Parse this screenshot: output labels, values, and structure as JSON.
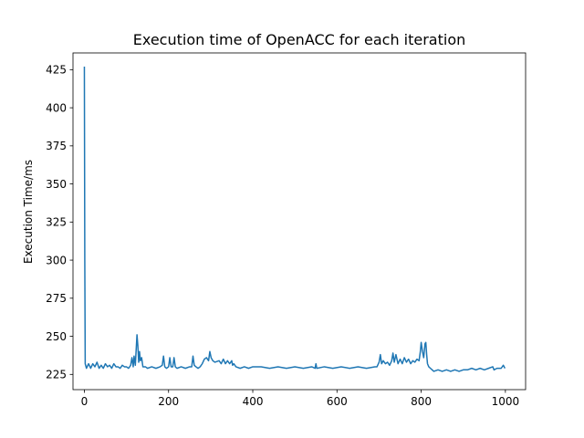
{
  "chart_data": {
    "type": "line",
    "title": "Execution time of OpenACC for each iteration",
    "xlabel": "",
    "ylabel": "Execution Time/ms",
    "xlim": [
      -27,
      1048
    ],
    "ylim": [
      215,
      436
    ],
    "xticks": [
      0,
      200,
      400,
      600,
      800,
      1000
    ],
    "yticks": [
      225,
      250,
      275,
      300,
      325,
      350,
      375,
      400,
      425
    ],
    "grid": false,
    "legend": "none",
    "series": [
      {
        "color": "#1f77b4",
        "points": [
          [
            0,
            427
          ],
          [
            1,
            300
          ],
          [
            2,
            232
          ],
          [
            5,
            229
          ],
          [
            10,
            232
          ],
          [
            15,
            229
          ],
          [
            20,
            232
          ],
          [
            25,
            230
          ],
          [
            30,
            233
          ],
          [
            35,
            229
          ],
          [
            40,
            231
          ],
          [
            45,
            229
          ],
          [
            50,
            232
          ],
          [
            55,
            230
          ],
          [
            60,
            231
          ],
          [
            65,
            229
          ],
          [
            70,
            232
          ],
          [
            75,
            230
          ],
          [
            80,
            230
          ],
          [
            85,
            229
          ],
          [
            90,
            231
          ],
          [
            95,
            230
          ],
          [
            100,
            230
          ],
          [
            105,
            229
          ],
          [
            110,
            231
          ],
          [
            113,
            236
          ],
          [
            116,
            230
          ],
          [
            118,
            237
          ],
          [
            121,
            231
          ],
          [
            123,
            241
          ],
          [
            125,
            251
          ],
          [
            127,
            244
          ],
          [
            129,
            233
          ],
          [
            131,
            240
          ],
          [
            133,
            234
          ],
          [
            136,
            236
          ],
          [
            139,
            230
          ],
          [
            145,
            230
          ],
          [
            150,
            229
          ],
          [
            160,
            230
          ],
          [
            170,
            229
          ],
          [
            180,
            230
          ],
          [
            185,
            231
          ],
          [
            188,
            237
          ],
          [
            191,
            230
          ],
          [
            195,
            229
          ],
          [
            200,
            230
          ],
          [
            203,
            236
          ],
          [
            206,
            230
          ],
          [
            210,
            230
          ],
          [
            213,
            236
          ],
          [
            216,
            230
          ],
          [
            220,
            229
          ],
          [
            230,
            230
          ],
          [
            240,
            229
          ],
          [
            250,
            230
          ],
          [
            255,
            230
          ],
          [
            258,
            237
          ],
          [
            261,
            231
          ],
          [
            265,
            230
          ],
          [
            270,
            229
          ],
          [
            275,
            230
          ],
          [
            280,
            232
          ],
          [
            285,
            235
          ],
          [
            290,
            236
          ],
          [
            295,
            234
          ],
          [
            298,
            240
          ],
          [
            301,
            236
          ],
          [
            305,
            234
          ],
          [
            310,
            233
          ],
          [
            320,
            234
          ],
          [
            325,
            232
          ],
          [
            330,
            235
          ],
          [
            335,
            232
          ],
          [
            340,
            234
          ],
          [
            345,
            232
          ],
          [
            350,
            234
          ],
          [
            352,
            231
          ],
          [
            355,
            232
          ],
          [
            360,
            230
          ],
          [
            370,
            229
          ],
          [
            380,
            230
          ],
          [
            390,
            229
          ],
          [
            400,
            230
          ],
          [
            420,
            230
          ],
          [
            440,
            229
          ],
          [
            460,
            230
          ],
          [
            480,
            229
          ],
          [
            500,
            230
          ],
          [
            520,
            229
          ],
          [
            540,
            230
          ],
          [
            548,
            229
          ],
          [
            550,
            232
          ],
          [
            552,
            229
          ],
          [
            570,
            230
          ],
          [
            590,
            229
          ],
          [
            610,
            230
          ],
          [
            630,
            229
          ],
          [
            650,
            230
          ],
          [
            670,
            229
          ],
          [
            690,
            230
          ],
          [
            695,
            230
          ],
          [
            700,
            233
          ],
          [
            703,
            238
          ],
          [
            706,
            232
          ],
          [
            710,
            234
          ],
          [
            715,
            232
          ],
          [
            720,
            233
          ],
          [
            725,
            231
          ],
          [
            730,
            234
          ],
          [
            733,
            239
          ],
          [
            736,
            233
          ],
          [
            740,
            238
          ],
          [
            745,
            232
          ],
          [
            750,
            235
          ],
          [
            755,
            232
          ],
          [
            760,
            236
          ],
          [
            765,
            233
          ],
          [
            770,
            235
          ],
          [
            775,
            232
          ],
          [
            780,
            234
          ],
          [
            785,
            233
          ],
          [
            790,
            235
          ],
          [
            795,
            234
          ],
          [
            798,
            240
          ],
          [
            800,
            246
          ],
          [
            803,
            240
          ],
          [
            806,
            236
          ],
          [
            809,
            245
          ],
          [
            811,
            246
          ],
          [
            813,
            238
          ],
          [
            815,
            232
          ],
          [
            818,
            230
          ],
          [
            822,
            229
          ],
          [
            826,
            228
          ],
          [
            830,
            227
          ],
          [
            840,
            228
          ],
          [
            850,
            227
          ],
          [
            860,
            228
          ],
          [
            870,
            227
          ],
          [
            880,
            228
          ],
          [
            890,
            227
          ],
          [
            900,
            228
          ],
          [
            910,
            228
          ],
          [
            920,
            229
          ],
          [
            930,
            228
          ],
          [
            940,
            229
          ],
          [
            950,
            228
          ],
          [
            960,
            229
          ],
          [
            970,
            230
          ],
          [
            973,
            228
          ],
          [
            980,
            229
          ],
          [
            990,
            229
          ],
          [
            995,
            231
          ],
          [
            999,
            229
          ]
        ]
      }
    ]
  }
}
